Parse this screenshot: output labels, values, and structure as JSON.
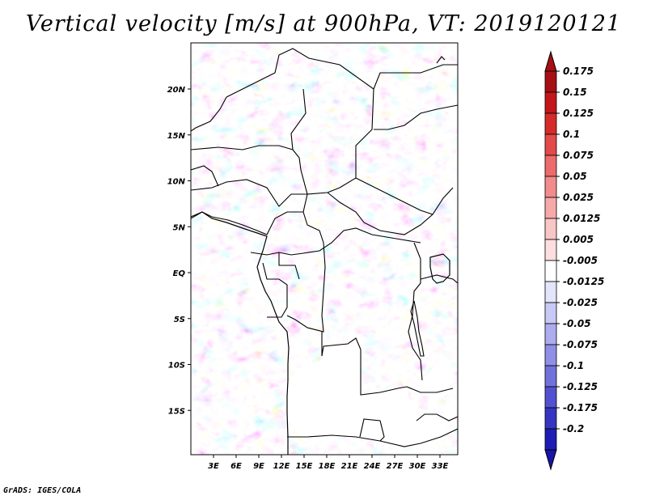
{
  "title": "Vertical velocity [m/s] at 900hPa, VT: 2019120121",
  "footer": "GrADS: IGES/COLA",
  "map": {
    "lat_ticks": [
      {
        "label": "20N",
        "lat": 20
      },
      {
        "label": "15N",
        "lat": 15
      },
      {
        "label": "10N",
        "lat": 10
      },
      {
        "label": "5N",
        "lat": 5
      },
      {
        "label": "EQ",
        "lat": 0
      },
      {
        "label": "5S",
        "lat": -5
      },
      {
        "label": "10S",
        "lat": -10
      },
      {
        "label": "15S",
        "lat": -15
      }
    ],
    "lon_ticks": [
      {
        "label": "3E",
        "lon": 3
      },
      {
        "label": "6E",
        "lon": 6
      },
      {
        "label": "9E",
        "lon": 9
      },
      {
        "label": "12E",
        "lon": 12
      },
      {
        "label": "15E",
        "lon": 15
      },
      {
        "label": "18E",
        "lon": 18
      },
      {
        "label": "21E",
        "lon": 21
      },
      {
        "label": "24E",
        "lon": 24
      },
      {
        "label": "27E",
        "lon": 27
      },
      {
        "label": "30E",
        "lon": 30
      },
      {
        "label": "33E",
        "lon": 33
      }
    ]
  },
  "colorbar": {
    "levels": [
      {
        "label": "0.175",
        "color": "#a50f15"
      },
      {
        "label": "0.15",
        "color": "#c3161b"
      },
      {
        "label": "0.125",
        "color": "#d52b2b"
      },
      {
        "label": "0.1",
        "color": "#e34a4a"
      },
      {
        "label": "0.075",
        "color": "#ec6b6b"
      },
      {
        "label": "0.05",
        "color": "#f28b8b"
      },
      {
        "label": "0.025",
        "color": "#f6a9a9"
      },
      {
        "label": "0.0125",
        "color": "#f9c6c6"
      },
      {
        "label": "0.005",
        "color": "#fcdede"
      },
      {
        "label": "-0.005",
        "color": "#ffffff"
      },
      {
        "label": "-0.0125",
        "color": "#e4e4fb"
      },
      {
        "label": "-0.025",
        "color": "#c9c9f5"
      },
      {
        "label": "-0.05",
        "color": "#acacef"
      },
      {
        "label": "-0.075",
        "color": "#8f8fe6"
      },
      {
        "label": "-0.1",
        "color": "#7171dc"
      },
      {
        "label": "-0.125",
        "color": "#5252d0"
      },
      {
        "label": "-0.175",
        "color": "#3535c2"
      },
      {
        "label": "-0.2",
        "color": "#1d1db3"
      }
    ],
    "top_color": "#a50f15",
    "bottom_color": "#1a14a8"
  }
}
